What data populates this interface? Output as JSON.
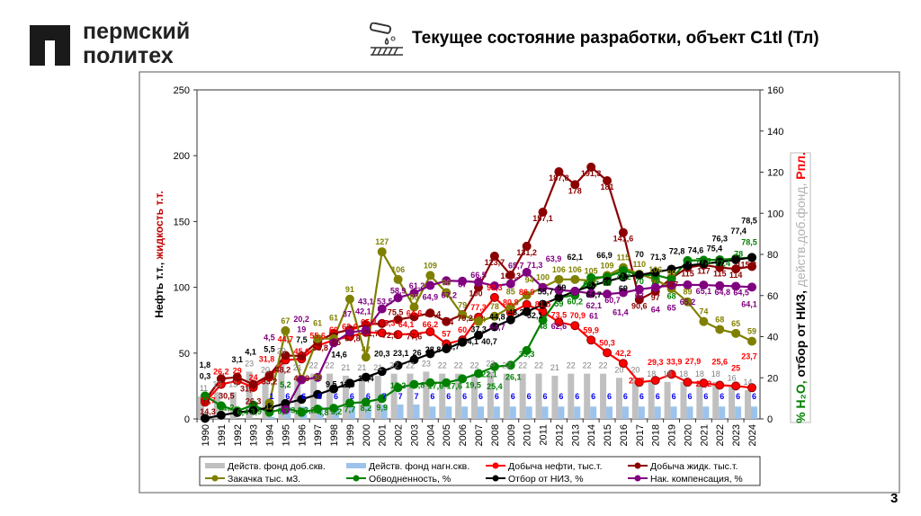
{
  "header": {
    "logo_line1": "пермский",
    "logo_line2": "политех",
    "title": "Текущее состояние разработки, объект С1tl (Тл)",
    "page_number": "3"
  },
  "colors": {
    "oil": "#ff0000",
    "liquid": "#8b0000",
    "injection": "#808000",
    "watercut": "#008000",
    "recovery": "#000000",
    "compensation": "#800080",
    "prod_wells": "#c0c0c0",
    "inj_wells": "#9cc3ec"
  },
  "chart_data": {
    "type": "bar+line",
    "categories": [
      "1990",
      "1991",
      "1992",
      "1993",
      "1994",
      "1995",
      "1996",
      "1997",
      "1998",
      "1999",
      "2000",
      "2001",
      "2002",
      "2003",
      "2004",
      "2005",
      "2006",
      "2007",
      "2008",
      "2009",
      "2010",
      "2011",
      "2012",
      "2013",
      "2014",
      "2015",
      "2016",
      "2017",
      "2018",
      "2019",
      "2020",
      "2021",
      "2022",
      "2023",
      "2024"
    ],
    "ylabel_left": [
      "Нефть т.т., ",
      "жидкость т.т."
    ],
    "ylabel_right": [
      "% H₂O, ",
      "отбор от НИЗ, ",
      "действ.доб.фонд, ",
      "Рпл."
    ],
    "ylim_left": [
      0,
      250
    ],
    "yticks_left": [
      0,
      50,
      100,
      150,
      200,
      250
    ],
    "ylim_right": [
      0,
      160
    ],
    "yticks_right": [
      0,
      20,
      40,
      60,
      80,
      100,
      120,
      140,
      160
    ],
    "grid": false,
    "legend_placement": "bottom",
    "series": [
      {
        "name": "Действ. фонд доб.скв.",
        "kind": "bar",
        "axis": "right",
        "color": "#c0c0c0",
        "label_color": "#808080",
        "values": [
          11,
          13,
          13,
          23,
          20,
          29,
          21,
          22,
          22,
          21,
          21,
          21,
          22,
          22,
          23,
          22,
          22,
          22,
          23,
          22,
          22,
          22,
          21,
          22,
          22,
          22,
          20,
          20,
          18,
          18,
          18,
          18,
          18,
          16,
          14
        ]
      },
      {
        "name": "Действ. фонд нагн.скв.",
        "kind": "bar",
        "axis": "right",
        "color": "#9cc3ec",
        "label_color": "#0000ff",
        "values": [
          null,
          null,
          null,
          null,
          1,
          6,
          6,
          6,
          6,
          6,
          6,
          7,
          7,
          7,
          6,
          6,
          6,
          6,
          6,
          6,
          6,
          6,
          6,
          6,
          6,
          6,
          6,
          6,
          6,
          6,
          6,
          6,
          6,
          6,
          6
        ]
      },
      {
        "name": "Добыча нефти, тыс.т.",
        "kind": "line",
        "axis": "left",
        "color": "#ff0000",
        "label_color": "#ff0000",
        "values": [
          12.7,
          26.2,
          29.0,
          24.0,
          31.8,
          44.7,
          45.6,
          55.6,
          60.0,
          62.6,
          65.8,
          65.3,
          64.1,
          64.6,
          66.2,
          57.0,
          60.0,
          77.3,
          92.3,
          80.8,
          86.9,
          81.5,
          73.5,
          70.9,
          59.9,
          50.3,
          42.2,
          27.8,
          29.3,
          33.9,
          27.9,
          27.2,
          25.6,
          25.0,
          23.7
        ]
      },
      {
        "name": "Добыча жидк. тыс.т.",
        "kind": "line",
        "axis": "left",
        "color": "#8b0000",
        "label_color": "#8b0000",
        "values": [
          14.3,
          30.5,
          31.7,
          26.3,
          33.2,
          48.2,
          47.8,
          58.8,
          65.0,
          67.8,
          71.7,
          72.5,
          75.5,
          77.6,
          80.4,
          74.0,
          79.2,
          100.0,
          123.7,
          109.3,
          131.2,
          157.1,
          187.8,
          178.0,
          191.3,
          181.0,
          141.6,
          90.6,
          97.0,
          107.0,
          115.0,
          117.0,
          115.0,
          114.0,
          115.8
        ]
      },
      {
        "name": "Закачка тыс. м3.",
        "kind": "line",
        "axis": "left",
        "color": "#808000",
        "label_color": "#808000",
        "values": [
          null,
          null,
          null,
          null,
          12,
          67,
          30,
          61,
          61,
          91,
          47,
          127,
          106,
          85,
          109,
          96,
          79,
          74,
          78,
          85,
          94,
          100,
          106,
          106,
          105,
          109,
          115,
          110,
          106,
          99,
          89,
          74,
          68,
          65,
          59
        ]
      },
      {
        "name": "Обводненность, %",
        "kind": "line",
        "axis": "right",
        "color": "#008000",
        "label_color": "#008000",
        "values": [
          11.2,
          6.4,
          3.9,
          6.7,
          3.2,
          5.2,
          3.2,
          4.8,
          5.2,
          7.7,
          8.2,
          9.9,
          15.2,
          16.8,
          17.6,
          17.6,
          19.5,
          22.1,
          25.4,
          26.1,
          33.3,
          48.0,
          59.0,
          60.2,
          68.7,
          69.0,
          72.2,
          70.0,
          70.0,
          68.0,
          77.0,
          77.2,
          77.4,
          78.0,
          78.5
        ]
      },
      {
        "name": "Отбор от НИЗ, %",
        "kind": "line",
        "axis": "right",
        "color": "#000000",
        "label_color": "#000000",
        "values": [
          0.3,
          1.8,
          3.1,
          4.1,
          5.5,
          7.5,
          9.5,
          11.9,
          14.6,
          17.4,
          20.3,
          23.1,
          26.0,
          28.8,
          31.7,
          34.1,
          37.3,
          40.7,
          44.8,
          48.2,
          52.1,
          55.7,
          59.0,
          62.1,
          64.7,
          66.9,
          69.0,
          70.0,
          71.3,
          72.8,
          74.6,
          75.4,
          76.3,
          77.4,
          78.5
        ]
      },
      {
        "name": "Нак. компенсация, %",
        "kind": "line",
        "axis": "right",
        "color": "#800080",
        "label_color": "#800080",
        "values": [
          null,
          null,
          null,
          null,
          null,
          4.5,
          19.0,
          20.2,
          37.0,
          42.1,
          43.1,
          53.5,
          58.9,
          61.2,
          64.9,
          67.2,
          67.0,
          66.5,
          64.7,
          65.7,
          71.3,
          63.9,
          62.6,
          62.1,
          61.0,
          60.7,
          61.4,
          63.0,
          64.0,
          65.0,
          65.2,
          65.1,
          64.8,
          64.5,
          64.1
        ]
      }
    ]
  }
}
